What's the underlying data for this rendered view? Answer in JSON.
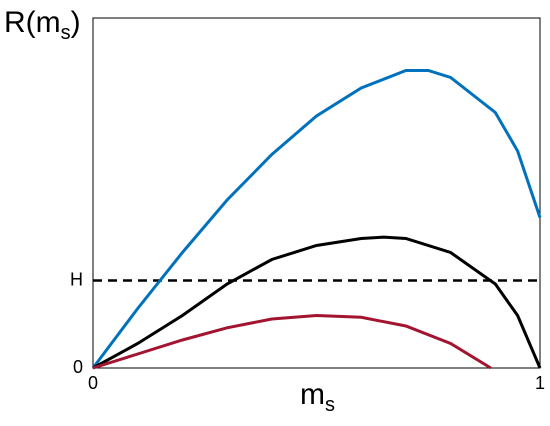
{
  "chart_data": {
    "type": "line",
    "ylabel": [
      "R(m",
      "s",
      ")"
    ],
    "xlabel": [
      "m",
      "s"
    ],
    "xlim": [
      0,
      1
    ],
    "ylim": [
      0,
      1
    ],
    "xticks": [
      0,
      1
    ],
    "yticks": [
      0,
      {
        "value": 0.25,
        "label": "H"
      }
    ],
    "series": [
      {
        "color": "#0072bd",
        "x": [
          0,
          0.1,
          0.2,
          0.3,
          0.4,
          0.5,
          0.6,
          0.7,
          0.75,
          0.8,
          0.9,
          0.95,
          1
        ],
        "values": [
          0,
          0.17,
          0.33,
          0.48,
          0.61,
          0.72,
          0.8,
          0.85,
          0.85,
          0.83,
          0.73,
          0.62,
          0.43
        ]
      },
      {
        "color": "#000000",
        "x": [
          0,
          0.1,
          0.2,
          0.3,
          0.4,
          0.5,
          0.6,
          0.65,
          0.7,
          0.8,
          0.9,
          0.95,
          1
        ],
        "values": [
          0,
          0.07,
          0.15,
          0.24,
          0.31,
          0.35,
          0.37,
          0.374,
          0.37,
          0.33,
          0.24,
          0.15,
          0
        ]
      },
      {
        "color": "#a2142f",
        "x": [
          0,
          0.1,
          0.2,
          0.3,
          0.4,
          0.5,
          0.6,
          0.7,
          0.8,
          0.89
        ],
        "values": [
          0,
          0.04,
          0.08,
          0.115,
          0.14,
          0.15,
          0.145,
          0.12,
          0.07,
          0
        ]
      }
    ]
  }
}
